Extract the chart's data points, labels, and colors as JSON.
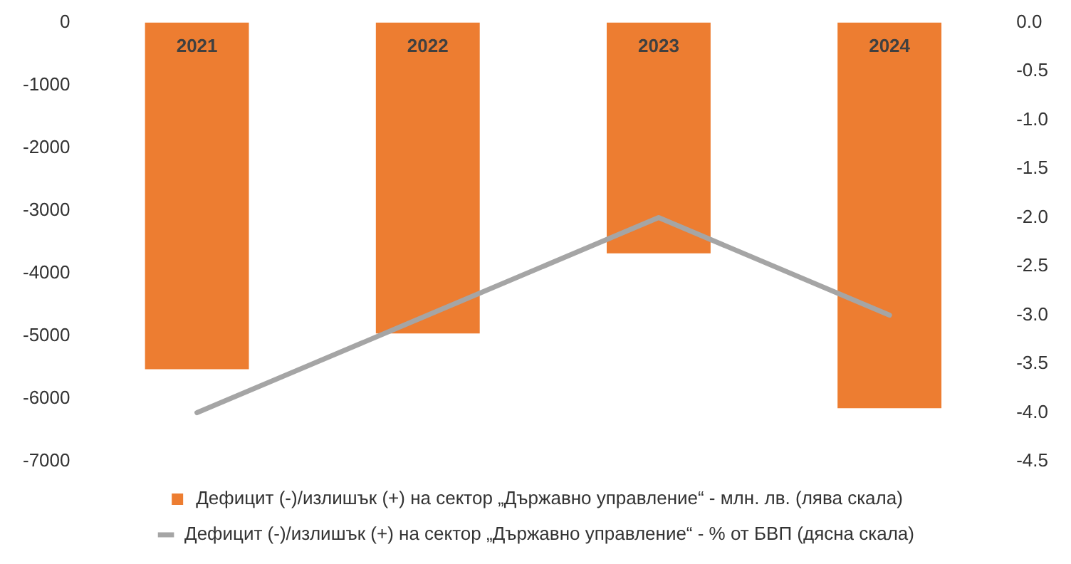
{
  "chart_data": {
    "type": "bar",
    "categories": [
      "2021",
      "2022",
      "2023",
      "2024"
    ],
    "series": [
      {
        "name": "Дефицит (-)/излишък (+) на сектор „Държавно управление“ - млн. лв. (лява скала)",
        "color": "#ed7d31",
        "values": [
          -5530,
          -4960,
          -3680,
          -6150
        ]
      },
      {
        "name": "Дефицит (-)/излишък (+) на сектор „Държавно управление“ - % от БВП (дясна скала)",
        "type": "line",
        "axis": "y2",
        "color": "#a5a5a5",
        "values": [
          -4.0,
          -3.0,
          -2.0,
          -3.0
        ]
      }
    ],
    "ylim": [
      -7000,
      0
    ],
    "yticks": [
      0,
      -1000,
      -2000,
      -3000,
      -4000,
      -5000,
      -6000,
      -7000
    ],
    "y2lim": [
      -4.5,
      0
    ],
    "y2ticks": [
      {
        "value": 0,
        "label": "0.0"
      },
      {
        "value": -0.5,
        "label": "-0.5"
      },
      {
        "value": -1,
        "label": "-1.0"
      },
      {
        "value": -1.5,
        "label": "-1.5"
      },
      {
        "value": -2,
        "label": "-2.0"
      },
      {
        "value": -2.5,
        "label": "-2.5"
      },
      {
        "value": -3,
        "label": "-3.0"
      },
      {
        "value": -3.5,
        "label": "-3.5"
      },
      {
        "value": -4,
        "label": "-4.0"
      },
      {
        "value": -4.5,
        "label": "-4.5"
      }
    ],
    "grid": false,
    "legend": "bottom",
    "marker": "none"
  }
}
